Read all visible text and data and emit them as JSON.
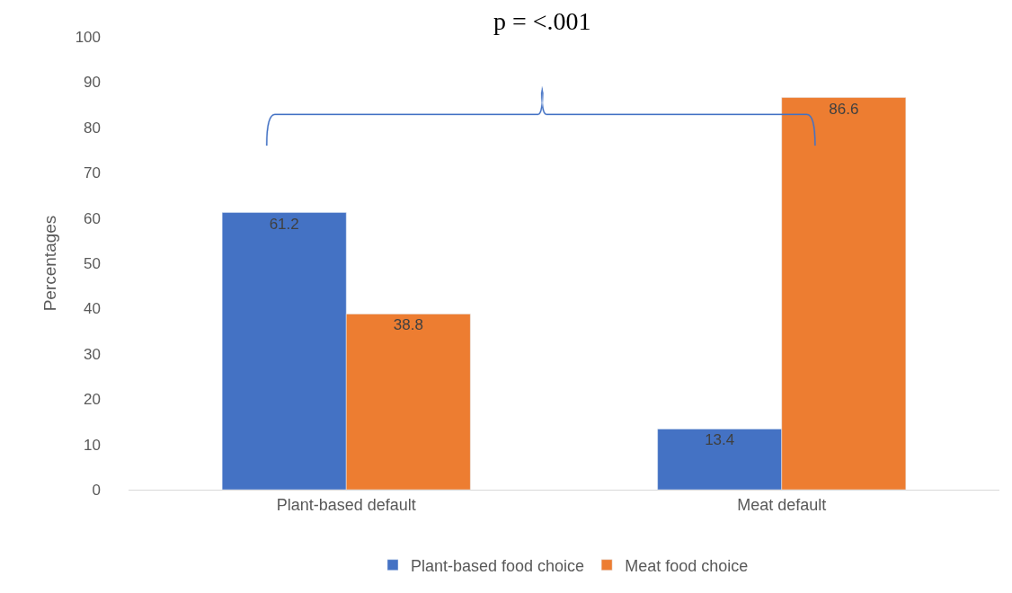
{
  "chart_data": {
    "type": "bar",
    "categories": [
      "Plant-based default",
      "Meat default"
    ],
    "series": [
      {
        "name": "Plant-based food choice",
        "color": "#4472c4",
        "values": [
          61.2,
          13.4
        ]
      },
      {
        "name": "Meat food choice",
        "color": "#ed7d31",
        "values": [
          38.8,
          86.6
        ]
      }
    ],
    "ylabel": "Percentages",
    "ylim": [
      0,
      100
    ],
    "yticks": [
      0,
      10,
      20,
      30,
      40,
      50,
      60,
      70,
      80,
      90,
      100
    ],
    "data_labels": true,
    "legend": "bottom",
    "annotations": [
      "p = <.001"
    ]
  }
}
